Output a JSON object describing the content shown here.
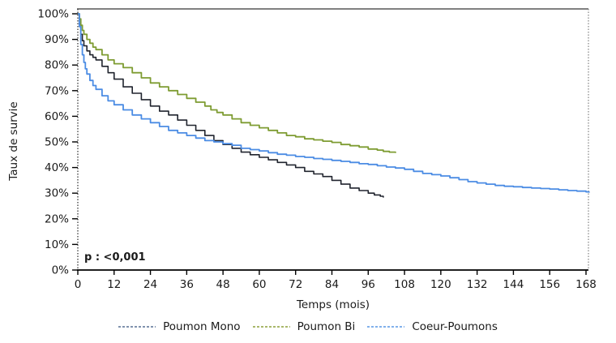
{
  "chart_data": {
    "type": "line",
    "title": "",
    "xlabel": "Temps (mois)",
    "ylabel": "Taux de survie",
    "annotation": "p : <0,001",
    "xlim": [
      0,
      168
    ],
    "ylim": [
      0,
      100
    ],
    "grid": false,
    "legend_position": "bottom",
    "x_tick_values": [
      0,
      12,
      24,
      36,
      48,
      60,
      72,
      84,
      96,
      108,
      120,
      132,
      144,
      156,
      168
    ],
    "x_tick_labels": [
      "0",
      "12",
      "24",
      "36",
      "48",
      "60",
      "72",
      "84",
      "96",
      "108",
      "120",
      "132",
      "144",
      "156",
      "168"
    ],
    "y_tick_values": [
      0,
      10,
      20,
      30,
      40,
      50,
      60,
      70,
      80,
      90,
      100
    ],
    "y_tick_labels": [
      "0%",
      "10%",
      "20%",
      "30%",
      "40%",
      "50%",
      "60%",
      "70%",
      "80%",
      "90%",
      "100%"
    ],
    "series": [
      {
        "name": "Poumon Mono",
        "color": "#20242E",
        "legend_color": "#8193AE",
        "points": [
          [
            0,
            100
          ],
          [
            0.5,
            96
          ],
          [
            1,
            92
          ],
          [
            1.5,
            89.5
          ],
          [
            2,
            87.5
          ],
          [
            3,
            85.5
          ],
          [
            4,
            84
          ],
          [
            5,
            83
          ],
          [
            6,
            82
          ],
          [
            8,
            79.5
          ],
          [
            10,
            77
          ],
          [
            12,
            74.5
          ],
          [
            15,
            71.5
          ],
          [
            18,
            69
          ],
          [
            21,
            66.5
          ],
          [
            24,
            64
          ],
          [
            27,
            62
          ],
          [
            30,
            60.5
          ],
          [
            33,
            58.5
          ],
          [
            36,
            56.5
          ],
          [
            39,
            54.5
          ],
          [
            42,
            52.5
          ],
          [
            45,
            50.5
          ],
          [
            48,
            49
          ],
          [
            51,
            47.5
          ],
          [
            54,
            46
          ],
          [
            57,
            45
          ],
          [
            60,
            44
          ],
          [
            63,
            43
          ],
          [
            66,
            42
          ],
          [
            69,
            41
          ],
          [
            72,
            40
          ],
          [
            75,
            38.5
          ],
          [
            78,
            37.5
          ],
          [
            81,
            36.5
          ],
          [
            84,
            35
          ],
          [
            87,
            33.5
          ],
          [
            90,
            32
          ],
          [
            93,
            31
          ],
          [
            96,
            30
          ],
          [
            98,
            29.3
          ],
          [
            100,
            28.8
          ],
          [
            101,
            28.3
          ]
        ]
      },
      {
        "name": "Poumon Bi",
        "color": "#7E9C32",
        "legend_color": "#A9B86B",
        "points": [
          [
            0,
            100
          ],
          [
            0.5,
            98
          ],
          [
            1,
            95.5
          ],
          [
            1.5,
            93.5
          ],
          [
            2,
            92
          ],
          [
            3,
            90
          ],
          [
            4,
            88.5
          ],
          [
            5,
            87
          ],
          [
            6,
            86
          ],
          [
            8,
            84
          ],
          [
            10,
            82
          ],
          [
            12,
            80.5
          ],
          [
            15,
            79
          ],
          [
            18,
            77
          ],
          [
            21,
            75
          ],
          [
            24,
            73
          ],
          [
            27,
            71.5
          ],
          [
            30,
            70
          ],
          [
            33,
            68.5
          ],
          [
            36,
            67
          ],
          [
            39,
            65.5
          ],
          [
            42,
            64
          ],
          [
            44,
            62.5
          ],
          [
            46,
            61.5
          ],
          [
            48,
            60.5
          ],
          [
            51,
            59
          ],
          [
            54,
            57.5
          ],
          [
            57,
            56.5
          ],
          [
            60,
            55.5
          ],
          [
            63,
            54.5
          ],
          [
            66,
            53.5
          ],
          [
            69,
            52.5
          ],
          [
            72,
            52
          ],
          [
            75,
            51.2
          ],
          [
            78,
            50.8
          ],
          [
            81,
            50.3
          ],
          [
            84,
            49.8
          ],
          [
            87,
            49
          ],
          [
            90,
            48.5
          ],
          [
            93,
            48
          ],
          [
            96,
            47.2
          ],
          [
            99,
            46.8
          ],
          [
            101,
            46.3
          ],
          [
            103,
            46
          ],
          [
            105,
            45.7
          ]
        ]
      },
      {
        "name": "Coeur-Poumons",
        "color": "#4B8CE4",
        "legend_color": "#82B1EC",
        "points": [
          [
            0,
            100
          ],
          [
            0.5,
            95
          ],
          [
            1,
            88
          ],
          [
            1.5,
            84
          ],
          [
            2,
            81
          ],
          [
            2.5,
            78.5
          ],
          [
            3,
            76.5
          ],
          [
            4,
            74
          ],
          [
            5,
            72
          ],
          [
            6,
            70.5
          ],
          [
            8,
            68
          ],
          [
            10,
            66
          ],
          [
            12,
            64.5
          ],
          [
            15,
            62.5
          ],
          [
            18,
            60.5
          ],
          [
            21,
            59
          ],
          [
            24,
            57.5
          ],
          [
            27,
            56
          ],
          [
            30,
            54.5
          ],
          [
            33,
            53.5
          ],
          [
            36,
            52.5
          ],
          [
            39,
            51.5
          ],
          [
            42,
            50.5
          ],
          [
            45,
            50
          ],
          [
            48,
            49.3
          ],
          [
            51,
            48.7
          ],
          [
            54,
            47.5
          ],
          [
            57,
            47
          ],
          [
            60,
            46.5
          ],
          [
            63,
            45.8
          ],
          [
            66,
            45.2
          ],
          [
            69,
            44.8
          ],
          [
            72,
            44.3
          ],
          [
            75,
            44
          ],
          [
            78,
            43.5
          ],
          [
            81,
            43.2
          ],
          [
            84,
            42.8
          ],
          [
            87,
            42.4
          ],
          [
            90,
            42
          ],
          [
            93,
            41.5
          ],
          [
            96,
            41.2
          ],
          [
            99,
            40.7
          ],
          [
            102,
            40.2
          ],
          [
            105,
            39.8
          ],
          [
            108,
            39.3
          ],
          [
            111,
            38.5
          ],
          [
            114,
            37.7
          ],
          [
            117,
            37.2
          ],
          [
            120,
            36.7
          ],
          [
            123,
            36
          ],
          [
            126,
            35.3
          ],
          [
            129,
            34.5
          ],
          [
            132,
            34
          ],
          [
            135,
            33.5
          ],
          [
            138,
            33
          ],
          [
            141,
            32.7
          ],
          [
            144,
            32.5
          ],
          [
            147,
            32.2
          ],
          [
            150,
            32
          ],
          [
            153,
            31.8
          ],
          [
            156,
            31.6
          ],
          [
            159,
            31.3
          ],
          [
            162,
            31
          ],
          [
            165,
            30.8
          ],
          [
            168,
            30.5
          ],
          [
            169,
            30.2
          ]
        ]
      }
    ],
    "frame_colors": {
      "top_border": "#808080",
      "right_border": "#8a8a8a",
      "left_axis": "#3a3a3a",
      "bottom_axis": "#000000",
      "tick_text": "#1a1a1a"
    }
  }
}
